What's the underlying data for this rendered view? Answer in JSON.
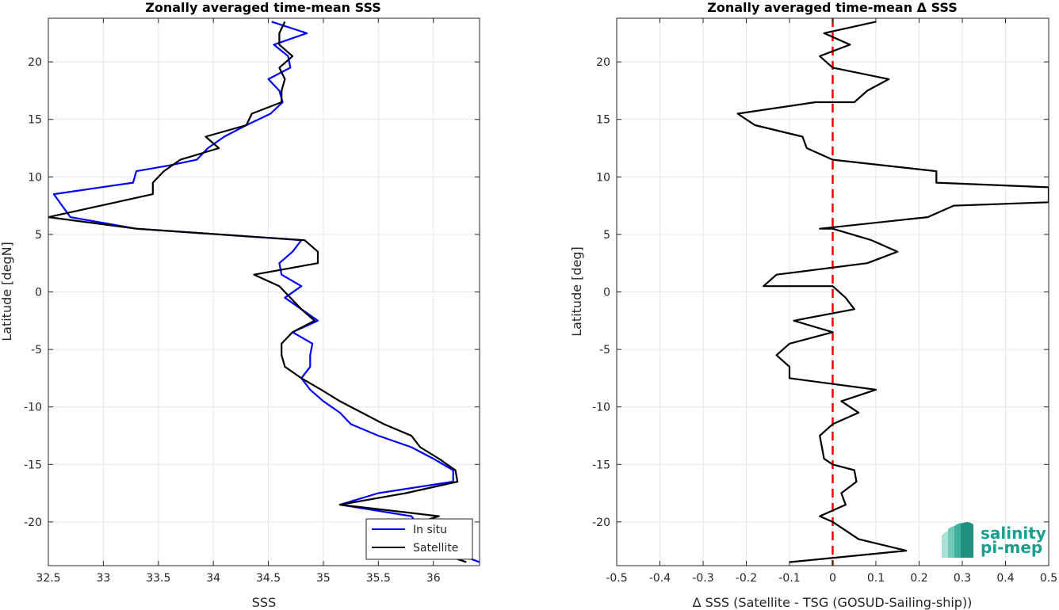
{
  "chart_data": [
    {
      "type": "line",
      "title": "Zonally averaged time-mean SSS",
      "xlabel": "SSS",
      "ylabel": "Latitude [degN]",
      "xlim": [
        32.5,
        36.42
      ],
      "ylim": [
        -23.8,
        23.8
      ],
      "xticks": [
        32.5,
        33,
        33.5,
        34,
        34.5,
        35,
        35.5,
        36
      ],
      "yticks": [
        -20,
        -15,
        -10,
        -5,
        0,
        5,
        10,
        15,
        20
      ],
      "grid": true,
      "legend_position": "bottom-right",
      "series": [
        {
          "name": "In situ",
          "color": "#0000ff",
          "points": [
            [
              34.53,
              23.5
            ],
            [
              34.85,
              22.5
            ],
            [
              34.55,
              21.5
            ],
            [
              34.68,
              20.5
            ],
            [
              34.7,
              19.5
            ],
            [
              34.5,
              18.5
            ],
            [
              34.6,
              17.5
            ],
            [
              34.63,
              16.5
            ],
            [
              34.52,
              15.5
            ],
            [
              34.3,
              14.5
            ],
            [
              34.1,
              13.5
            ],
            [
              33.95,
              12.5
            ],
            [
              33.85,
              11.5
            ],
            [
              33.6,
              11.0
            ],
            [
              33.3,
              10.5
            ],
            [
              33.27,
              9.5
            ],
            [
              32.55,
              8.5
            ],
            [
              32.7,
              6.5
            ],
            [
              33.3,
              5.5
            ],
            [
              34.8,
              4.5
            ],
            [
              34.72,
              3.5
            ],
            [
              34.6,
              2.5
            ],
            [
              34.62,
              1.5
            ],
            [
              34.8,
              0.5
            ],
            [
              34.65,
              -0.5
            ],
            [
              34.8,
              -1.5
            ],
            [
              34.95,
              -2.5
            ],
            [
              34.72,
              -3.5
            ],
            [
              34.9,
              -4.5
            ],
            [
              34.88,
              -5.5
            ],
            [
              34.88,
              -6.5
            ],
            [
              34.8,
              -7.5
            ],
            [
              34.88,
              -8.5
            ],
            [
              35.0,
              -9.5
            ],
            [
              35.15,
              -10.5
            ],
            [
              35.25,
              -11.5
            ],
            [
              35.5,
              -12.5
            ],
            [
              35.8,
              -13.5
            ],
            [
              36.0,
              -14.5
            ],
            [
              36.18,
              -15.5
            ],
            [
              36.18,
              -16.5
            ],
            [
              35.5,
              -17.5
            ],
            [
              35.15,
              -18.5
            ],
            [
              35.8,
              -19.5
            ],
            [
              36.0,
              -22.0
            ],
            [
              36.42,
              -23.5
            ]
          ]
        },
        {
          "name": "Satellite",
          "color": "#000000",
          "points": [
            [
              34.65,
              23.5
            ],
            [
              34.6,
              22.5
            ],
            [
              34.6,
              21.5
            ],
            [
              34.72,
              20.5
            ],
            [
              34.6,
              19.5
            ],
            [
              34.65,
              18.5
            ],
            [
              34.62,
              17.5
            ],
            [
              34.62,
              16.5
            ],
            [
              34.35,
              15.5
            ],
            [
              34.3,
              14.5
            ],
            [
              33.93,
              13.5
            ],
            [
              34.05,
              12.5
            ],
            [
              33.7,
              11.5
            ],
            [
              33.55,
              10.5
            ],
            [
              33.45,
              9.5
            ],
            [
              33.45,
              8.5
            ],
            [
              32.5,
              6.5
            ],
            [
              33.3,
              5.5
            ],
            [
              34.83,
              4.5
            ],
            [
              34.95,
              3.5
            ],
            [
              34.95,
              2.5
            ],
            [
              34.37,
              1.5
            ],
            [
              34.6,
              0.5
            ],
            [
              34.7,
              -0.5
            ],
            [
              34.8,
              -1.5
            ],
            [
              34.92,
              -2.5
            ],
            [
              34.72,
              -3.5
            ],
            [
              34.62,
              -4.5
            ],
            [
              34.62,
              -5.5
            ],
            [
              34.65,
              -6.5
            ],
            [
              34.8,
              -7.5
            ],
            [
              34.98,
              -8.5
            ],
            [
              35.15,
              -9.5
            ],
            [
              35.35,
              -10.5
            ],
            [
              35.55,
              -11.5
            ],
            [
              35.8,
              -12.5
            ],
            [
              35.88,
              -13.5
            ],
            [
              36.05,
              -14.5
            ],
            [
              36.2,
              -15.5
            ],
            [
              36.22,
              -16.5
            ],
            [
              35.75,
              -17.5
            ],
            [
              35.15,
              -18.5
            ],
            [
              36.05,
              -19.5
            ],
            [
              35.55,
              -21.0
            ],
            [
              36.3,
              -23.5
            ]
          ]
        }
      ]
    },
    {
      "type": "line",
      "title": "Zonally averaged time-mean Δ SSS",
      "xlabel": "Δ SSS (Satellite - TSG (GOSUD-Sailing-ship))",
      "ylabel": "Latitude [deg]",
      "xlim": [
        -0.5,
        0.5
      ],
      "ylim": [
        -23.8,
        23.8
      ],
      "xticks": [
        -0.5,
        -0.4,
        -0.3,
        -0.2,
        -0.1,
        0,
        0.1,
        0.2,
        0.3,
        0.4,
        0.5
      ],
      "xtick_labels": [
        "-0.5",
        "-0.4",
        "-0.3",
        "-0.2",
        "-0.1",
        "0",
        "0.1",
        "0.2",
        "0.3",
        "0.4",
        "0.5"
      ],
      "yticks": [
        -20,
        -15,
        -10,
        -5,
        0,
        5,
        10,
        15,
        20
      ],
      "grid": true,
      "reference_line": {
        "x": 0,
        "color": "#ff0000",
        "style": "dashed"
      },
      "series": [
        {
          "name": "",
          "color": "#000000",
          "points": [
            [
              0.1,
              23.5
            ],
            [
              -0.02,
              22.5
            ],
            [
              0.04,
              21.5
            ],
            [
              -0.03,
              20.5
            ],
            [
              0.0,
              19.5
            ],
            [
              0.13,
              18.5
            ],
            [
              0.08,
              17.5
            ],
            [
              0.05,
              16.5
            ],
            [
              -0.04,
              16.5
            ],
            [
              -0.22,
              15.5
            ],
            [
              -0.18,
              14.5
            ],
            [
              -0.07,
              13.5
            ],
            [
              -0.06,
              12.5
            ],
            [
              0.0,
              11.5
            ],
            [
              0.24,
              10.5
            ],
            [
              0.24,
              9.5
            ],
            [
              0.5,
              9.1
            ],
            [
              0.5,
              7.8
            ],
            [
              0.28,
              7.5
            ],
            [
              0.22,
              6.5
            ],
            [
              -0.03,
              5.5
            ],
            [
              0.0,
              5.5
            ],
            [
              0.09,
              4.5
            ],
            [
              0.15,
              3.5
            ],
            [
              0.08,
              2.5
            ],
            [
              -0.13,
              1.5
            ],
            [
              -0.16,
              0.5
            ],
            [
              0.0,
              0.5
            ],
            [
              0.03,
              -0.5
            ],
            [
              0.05,
              -1.5
            ],
            [
              -0.09,
              -2.5
            ],
            [
              0.0,
              -3.5
            ],
            [
              -0.1,
              -4.5
            ],
            [
              -0.13,
              -5.5
            ],
            [
              -0.1,
              -6.5
            ],
            [
              -0.1,
              -7.5
            ],
            [
              0.1,
              -8.5
            ],
            [
              0.02,
              -9.5
            ],
            [
              0.06,
              -10.5
            ],
            [
              0.0,
              -11.5
            ],
            [
              -0.03,
              -12.5
            ],
            [
              -0.025,
              -13.5
            ],
            [
              -0.02,
              -14.5
            ],
            [
              0.0,
              -15.0
            ],
            [
              0.05,
              -15.5
            ],
            [
              0.055,
              -16.5
            ],
            [
              0.02,
              -17.5
            ],
            [
              0.03,
              -18.5
            ],
            [
              -0.03,
              -19.5
            ],
            [
              0.0,
              -20.0
            ],
            [
              0.06,
              -21.5
            ],
            [
              0.17,
              -22.5
            ],
            [
              -0.1,
              -23.5
            ]
          ]
        }
      ]
    }
  ],
  "logo": {
    "line1": "salinity",
    "line2": "pi-mep",
    "color": "#1a9e8f"
  }
}
